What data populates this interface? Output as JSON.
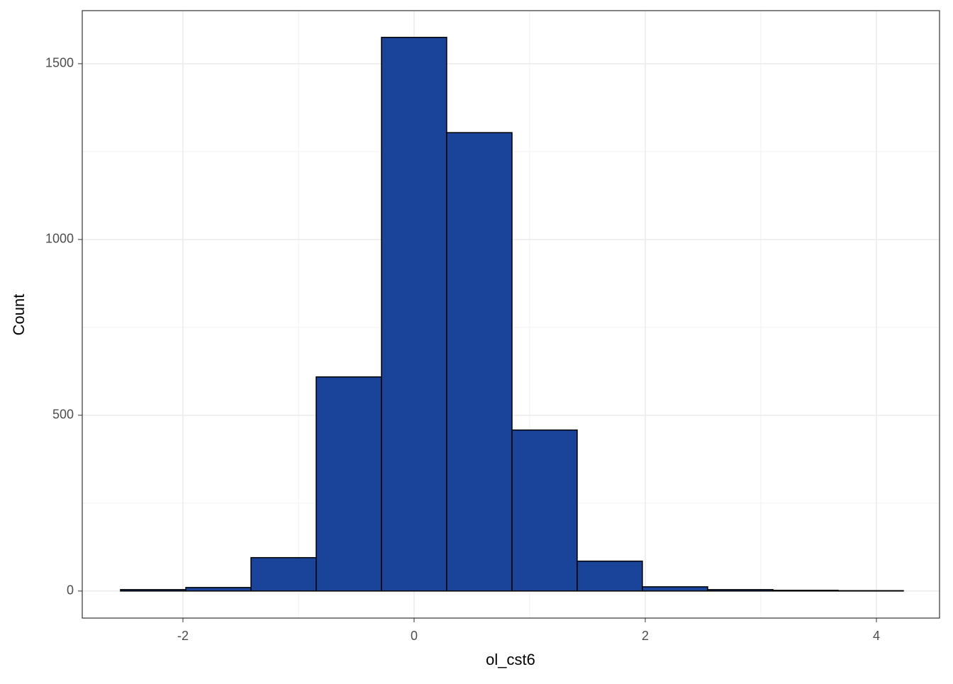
{
  "chart_data": {
    "type": "histogram",
    "x_label": "ol_cst6",
    "y_label": "Count",
    "bins": [
      -2.54,
      -1.975,
      -1.411,
      -0.847,
      -0.282,
      0.282,
      0.847,
      1.411,
      1.975,
      2.54,
      3.105,
      3.669,
      4.233
    ],
    "values": [
      4,
      10,
      95,
      609,
      1575,
      1304,
      458,
      85,
      12,
      4,
      2,
      1
    ],
    "color": "#1a4499",
    "edge_color": "#000000",
    "xlim": [
      -2.871,
      4.546
    ],
    "xticks": [
      -2,
      0,
      2,
      4
    ],
    "ylim": [
      -77,
      1651
    ],
    "yticks": [
      0,
      500,
      1000,
      1500
    ],
    "x_minor_grid": [
      -1,
      1,
      3
    ],
    "y_minor_grid": [
      250,
      750,
      1250
    ],
    "grid": true
  }
}
